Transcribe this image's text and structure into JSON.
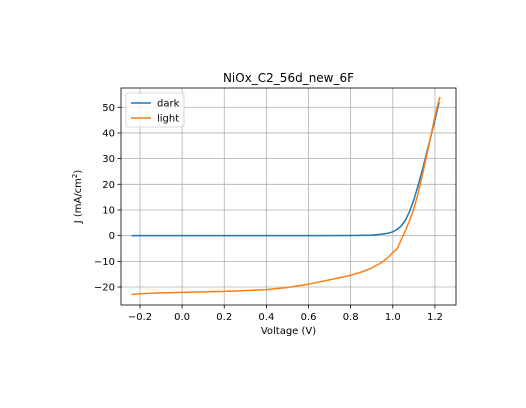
{
  "chart_data": {
    "type": "line",
    "title": "NiOx_C2_56d_new_6F",
    "xlabel": "Voltage (V)",
    "ylabel_main": "J (mA/cm",
    "ylabel_sup": "2",
    "ylabel_end": ")",
    "xlim": [
      -0.29,
      1.3
    ],
    "ylim": [
      -27,
      57.5
    ],
    "xticks": [
      -0.2,
      0.0,
      0.2,
      0.4,
      0.6,
      0.8,
      1.0,
      1.2
    ],
    "xtick_labels": [
      "−0.2",
      "0.0",
      "0.2",
      "0.4",
      "0.6",
      "0.8",
      "1.0",
      "1.2"
    ],
    "yticks": [
      -20,
      -10,
      0,
      10,
      20,
      30,
      40,
      50
    ],
    "ytick_labels": [
      "−20",
      "−10",
      "0",
      "10",
      "20",
      "30",
      "40",
      "50"
    ],
    "grid": true,
    "legend_position": "top-left",
    "series": [
      {
        "name": "dark",
        "color": "#1f77b4",
        "x": [
          -0.24,
          0.0,
          0.2,
          0.4,
          0.6,
          0.8,
          0.9,
          0.95,
          0.98,
          1.0,
          1.02,
          1.04,
          1.06,
          1.08,
          1.1,
          1.12,
          1.14,
          1.16,
          1.18,
          1.2,
          1.22
        ],
        "y": [
          0.0,
          0.0,
          0.0,
          0.0,
          0.0,
          0.05,
          0.2,
          0.6,
          1.0,
          1.5,
          2.4,
          3.8,
          6.0,
          9.5,
          14.0,
          19.5,
          25.5,
          32.0,
          38.5,
          45.0,
          52.0
        ]
      },
      {
        "name": "light",
        "color": "#ff7f0e",
        "x": [
          -0.24,
          -0.2,
          -0.1,
          0.0,
          0.1,
          0.2,
          0.3,
          0.4,
          0.5,
          0.6,
          0.7,
          0.8,
          0.85,
          0.9,
          0.95,
          0.98,
          1.0,
          1.02,
          1.04,
          1.06,
          1.08,
          1.1,
          1.12,
          1.14,
          1.16,
          1.18,
          1.2,
          1.22,
          1.225
        ],
        "y": [
          -22.9,
          -22.6,
          -22.3,
          -22.1,
          -21.9,
          -21.7,
          -21.4,
          -21.0,
          -20.2,
          -18.9,
          -17.2,
          -15.4,
          -14.2,
          -12.6,
          -10.3,
          -8.3,
          -6.5,
          -5.2,
          -1.5,
          2.0,
          6.0,
          10.5,
          16.5,
          23.5,
          31.0,
          38.5,
          46.5,
          53.0,
          54.0
        ]
      }
    ]
  }
}
